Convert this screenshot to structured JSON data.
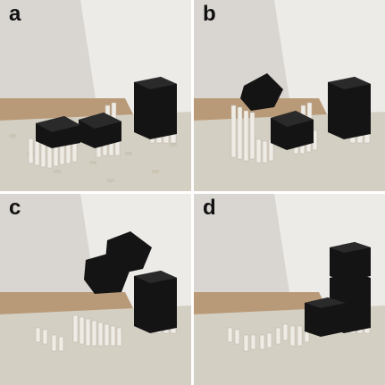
{
  "panels": [
    {
      "id": "a",
      "label": "a",
      "description_icon": "photo-cubes-on-pin-array"
    },
    {
      "id": "b",
      "label": "b",
      "description_icon": "photo-cube-tossed-by-pins"
    },
    {
      "id": "c",
      "label": "c",
      "description_icon": "photo-cubes-in-air"
    },
    {
      "id": "d",
      "label": "d",
      "description_icon": "photo-cubes-stacked"
    }
  ],
  "colors": {
    "wall": "#dedbd7",
    "table": "#b99a78",
    "pins": "#e9e6df",
    "cube": "#141414",
    "label": "#111111"
  }
}
